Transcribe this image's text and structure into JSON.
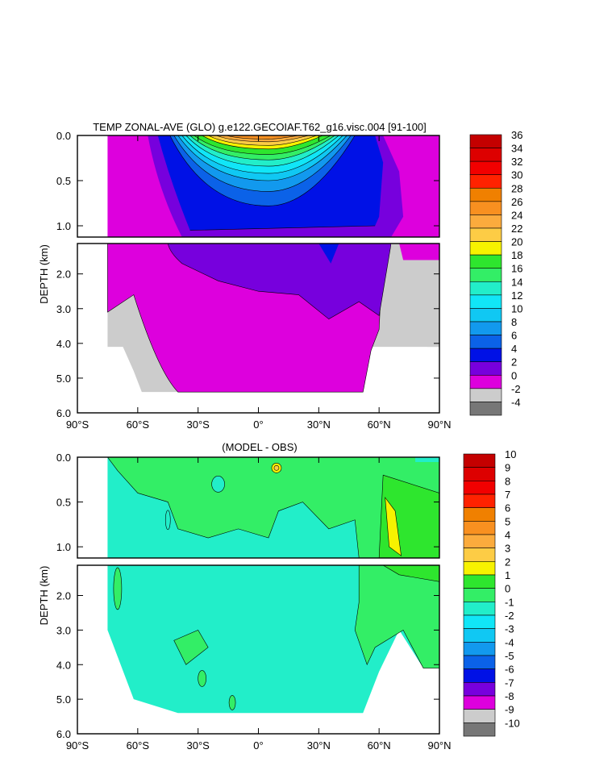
{
  "chart_data": [
    {
      "type": "heatmap",
      "title": "TEMP ZONAL-AVE (GLO) g.e122.GECOIAF.T62_g16.visc.004 [91-100]",
      "ylabel": "DEPTH (km)",
      "x_ticks": [
        "90°S",
        "60°S",
        "30°S",
        "0°",
        "30°N",
        "60°N",
        "90°N"
      ],
      "x_range": [
        -90,
        90
      ],
      "y_range": [
        0,
        6
      ],
      "upper_panel_ticks": [
        "0.0",
        "0.5",
        "1.0"
      ],
      "lower_panel_ticks": [
        "2.0",
        "3.0",
        "4.0",
        "5.0",
        "6.0"
      ],
      "colorbar": {
        "labels": [
          "36",
          "34",
          "32",
          "30",
          "28",
          "26",
          "24",
          "22",
          "20",
          "18",
          "16",
          "14",
          "12",
          "10",
          "8",
          "6",
          "4",
          "2",
          "0",
          "-2",
          "-4"
        ],
        "colors": [
          "#c40000",
          "#dd0000",
          "#f20000",
          "#ff2200",
          "#f08000",
          "#f89020",
          "#fbab3d",
          "#fdcc45",
          "#f7f200",
          "#2ee62e",
          "#33ee66",
          "#22eec9",
          "#11e6f7",
          "#10c8f3",
          "#1299ee",
          "#0b62e8",
          "#0011e6",
          "#7700dd",
          "#dd00dd",
          "#cccccc",
          "#777777"
        ]
      },
      "approx_profile": {
        "note": "Zonal mean ocean temperature: warm surface (20-30 °C) between ~40°S and ~40°N, cooling to 2-4 °C below 1 km; sub-zero near Antarctica and the Arctic.",
        "surface_max_c": 28,
        "deep_c": 2
      }
    },
    {
      "type": "heatmap",
      "title": "(MODEL - OBS)",
      "ylabel": "DEPTH (km)",
      "x_ticks": [
        "90°S",
        "60°S",
        "30°S",
        "0°",
        "30°N",
        "60°N",
        "90°N"
      ],
      "x_range": [
        -90,
        90
      ],
      "y_range": [
        0,
        6
      ],
      "upper_panel_ticks": [
        "0.0",
        "0.5",
        "1.0"
      ],
      "lower_panel_ticks": [
        "2.0",
        "3.0",
        "4.0",
        "5.0",
        "6.0"
      ],
      "colorbar": {
        "labels": [
          "10",
          "9",
          "8",
          "7",
          "6",
          "5",
          "4",
          "3",
          "2",
          "1",
          "0",
          "-1",
          "-2",
          "-3",
          "-4",
          "-5",
          "-6",
          "-7",
          "-8",
          "-9",
          "-10"
        ],
        "colors": [
          "#c40000",
          "#dd0000",
          "#f20000",
          "#ff2200",
          "#f08000",
          "#f89020",
          "#fbab3d",
          "#fdcc45",
          "#f7f200",
          "#2ee62e",
          "#33ee66",
          "#22eec9",
          "#11e6f7",
          "#10c8f3",
          "#1299ee",
          "#0b62e8",
          "#0011e6",
          "#7700dd",
          "#dd00dd",
          "#cccccc",
          "#777777"
        ]
      },
      "approx_profile": {
        "note": "Model minus observed temperature: mostly 0 to -1 °C at depth, 0 to +1 °C in the upper ocean, with a +2 to +3 °C warm anomaly near 65°N around 0.5-1 km.",
        "typical_c": -0.5,
        "max_anomaly_c": 3
      }
    }
  ]
}
